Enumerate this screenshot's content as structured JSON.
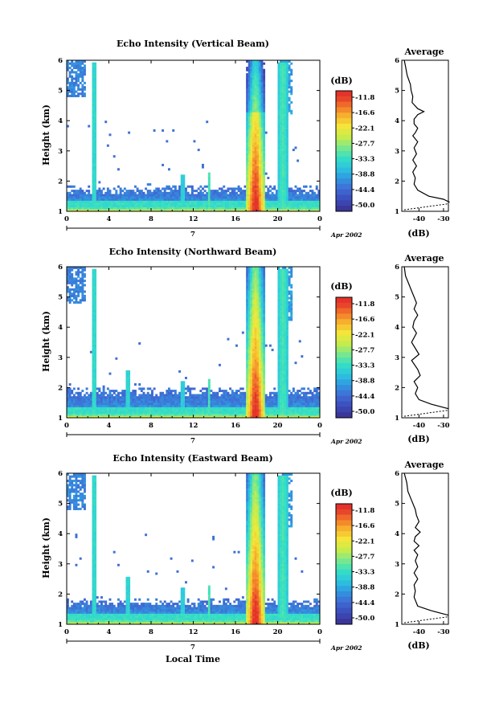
{
  "figure": {
    "xlabel": "Local Time",
    "date_label": "Apr 2002",
    "day_label": "7"
  },
  "chart_data": [
    {
      "type": "heatmap",
      "title": "Echo Intensity (Vertical Beam)",
      "ylabel": "Height (km)",
      "xlim": [
        0,
        24
      ],
      "x_ticks": [
        "0",
        "4",
        "8",
        "12",
        "16",
        "20",
        "0"
      ],
      "ylim": [
        1,
        6
      ],
      "y_ticks": [
        "1",
        "2",
        "3",
        "4",
        "5",
        "6"
      ],
      "colorbar": {
        "unit": "(dB)",
        "ticks": [
          "-11.8",
          "-16.6",
          "-22.1",
          "-27.7",
          "-33.3",
          "-38.8",
          "-44.4",
          "-50.0"
        ],
        "range": [
          -55,
          -8
        ]
      },
      "profile": {
        "title": "Average",
        "xlabel": "(dB)",
        "x_ticks": [
          "-40",
          "-30"
        ],
        "xlim": [
          -47,
          -28
        ],
        "points": [
          [
            -46,
            6.0
          ],
          [
            -45.5,
            5.8
          ],
          [
            -44.8,
            5.5
          ],
          [
            -43.5,
            5.2
          ],
          [
            -43.2,
            5.0
          ],
          [
            -42.5,
            4.8
          ],
          [
            -42.8,
            4.6
          ],
          [
            -40.5,
            4.4
          ],
          [
            -38,
            4.3
          ],
          [
            -40.5,
            4.2
          ],
          [
            -42,
            4.05
          ],
          [
            -42,
            3.9
          ],
          [
            -40.5,
            3.75
          ],
          [
            -41.5,
            3.6
          ],
          [
            -42.5,
            3.5
          ],
          [
            -40.5,
            3.3
          ],
          [
            -42,
            3.1
          ],
          [
            -41,
            2.9
          ],
          [
            -42.5,
            2.7
          ],
          [
            -41,
            2.5
          ],
          [
            -42.5,
            2.3
          ],
          [
            -41.5,
            2.1
          ],
          [
            -42,
            1.9
          ],
          [
            -40.5,
            1.7
          ],
          [
            -36,
            1.5
          ],
          [
            -30,
            1.4
          ],
          [
            -27.5,
            1.3
          ]
        ]
      }
    },
    {
      "type": "heatmap",
      "title": "Echo Intensity (Northward Beam)",
      "ylabel": "Height (km)",
      "xlim": [
        0,
        24
      ],
      "x_ticks": [
        "0",
        "4",
        "8",
        "12",
        "16",
        "20",
        "0"
      ],
      "ylim": [
        1,
        6
      ],
      "y_ticks": [
        "1",
        "2",
        "3",
        "4",
        "5",
        "6"
      ],
      "colorbar": {
        "unit": "(dB)",
        "ticks": [
          "-11.8",
          "-16.6",
          "-22.1",
          "-27.7",
          "-33.3",
          "-38.8",
          "-44.4",
          "-50.0"
        ],
        "range": [
          -55,
          -8
        ]
      },
      "profile": {
        "title": "Average",
        "xlabel": "(dB)",
        "x_ticks": [
          "-40",
          "-30"
        ],
        "xlim": [
          -47,
          -28
        ],
        "points": [
          [
            -46,
            6.0
          ],
          [
            -45.5,
            5.7
          ],
          [
            -44,
            5.4
          ],
          [
            -43,
            5.2
          ],
          [
            -42,
            5.0
          ],
          [
            -41,
            4.8
          ],
          [
            -42,
            4.6
          ],
          [
            -40.5,
            4.4
          ],
          [
            -42,
            4.2
          ],
          [
            -42.5,
            4.0
          ],
          [
            -41,
            3.8
          ],
          [
            -43,
            3.5
          ],
          [
            -41.5,
            3.3
          ],
          [
            -40,
            3.1
          ],
          [
            -43,
            2.9
          ],
          [
            -40.5,
            2.6
          ],
          [
            -39.5,
            2.4
          ],
          [
            -42,
            2.2
          ],
          [
            -40.5,
            2.0
          ],
          [
            -41.5,
            1.8
          ],
          [
            -40,
            1.6
          ],
          [
            -35,
            1.45
          ],
          [
            -28,
            1.3
          ]
        ]
      }
    },
    {
      "type": "heatmap",
      "title": "Echo Intensity (Eastward Beam)",
      "ylabel": "Height (km)",
      "xlim": [
        0,
        24
      ],
      "x_ticks": [
        "0",
        "4",
        "8",
        "12",
        "16",
        "20",
        "0"
      ],
      "ylim": [
        1,
        6
      ],
      "y_ticks": [
        "1",
        "2",
        "3",
        "4",
        "5",
        "6"
      ],
      "colorbar": {
        "unit": "(dB)",
        "ticks": [
          "-11.8",
          "-16.6",
          "-22.1",
          "-27.7",
          "-33.3",
          "-38.8",
          "-44.4",
          "-50.0"
        ],
        "range": [
          -55,
          -8
        ]
      },
      "profile": {
        "title": "Average",
        "xlabel": "(dB)",
        "x_ticks": [
          "-40",
          "-30"
        ],
        "xlim": [
          -47,
          -28
        ],
        "points": [
          [
            -46,
            6.0
          ],
          [
            -45,
            5.7
          ],
          [
            -44.5,
            5.4
          ],
          [
            -43,
            5.1
          ],
          [
            -41.5,
            4.8
          ],
          [
            -41,
            4.6
          ],
          [
            -40,
            4.4
          ],
          [
            -41.5,
            4.2
          ],
          [
            -39.5,
            4.05
          ],
          [
            -41.5,
            3.9
          ],
          [
            -42,
            3.75
          ],
          [
            -40,
            3.6
          ],
          [
            -42,
            3.45
          ],
          [
            -40.5,
            3.3
          ],
          [
            -41.5,
            3.1
          ],
          [
            -40.5,
            2.9
          ],
          [
            -42,
            2.7
          ],
          [
            -40.5,
            2.5
          ],
          [
            -42,
            2.3
          ],
          [
            -41.5,
            2.1
          ],
          [
            -42,
            1.9
          ],
          [
            -40.5,
            1.6
          ],
          [
            -35,
            1.45
          ],
          [
            -28,
            1.3
          ]
        ]
      }
    }
  ]
}
